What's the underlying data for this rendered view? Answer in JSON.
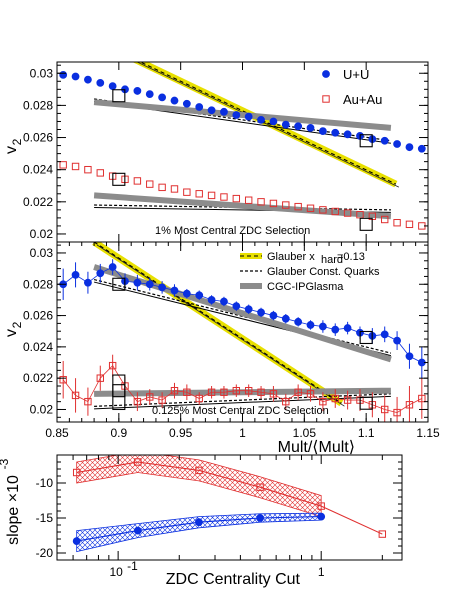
{
  "chart_data": [
    {
      "type": "scatter",
      "panel": "top",
      "ylabel": "v",
      "ylabel_sub": "2",
      "xlim": [
        0.85,
        1.15
      ],
      "ylim": [
        0.0195,
        0.0307
      ],
      "yticks": [
        "0.02",
        "0.022",
        "0.024",
        "0.026",
        "0.028",
        "0.03"
      ],
      "annotation": "1% Most Central ZDC Selection",
      "legend": [
        {
          "name": "U+U",
          "marker": "filled-circle",
          "color": "#0a2fe0"
        },
        {
          "name": "Au+Au",
          "marker": "open-square",
          "color": "#e03030"
        }
      ],
      "series": [
        {
          "name": "U+U",
          "x": [
            0.855,
            0.865,
            0.875,
            0.885,
            0.895,
            0.905,
            0.915,
            0.925,
            0.935,
            0.945,
            0.955,
            0.965,
            0.975,
            0.985,
            0.995,
            1.005,
            1.015,
            1.025,
            1.035,
            1.045,
            1.055,
            1.065,
            1.075,
            1.085,
            1.095,
            1.105,
            1.115,
            1.125,
            1.135,
            1.145
          ],
          "y": [
            0.0299,
            0.0298,
            0.0296,
            0.0294,
            0.0292,
            0.029,
            0.0289,
            0.0287,
            0.0285,
            0.0283,
            0.0281,
            0.0279,
            0.0277,
            0.0276,
            0.0274,
            0.0273,
            0.0271,
            0.027,
            0.0268,
            0.0267,
            0.0266,
            0.0264,
            0.0263,
            0.0262,
            0.0261,
            0.0259,
            0.0258,
            0.0256,
            0.0254,
            0.0253
          ]
        },
        {
          "name": "Au+Au",
          "x": [
            0.855,
            0.865,
            0.875,
            0.885,
            0.895,
            0.905,
            0.915,
            0.925,
            0.935,
            0.945,
            0.955,
            0.965,
            0.975,
            0.985,
            0.995,
            1.005,
            1.015,
            1.025,
            1.035,
            1.045,
            1.055,
            1.065,
            1.075,
            1.085,
            1.095,
            1.105,
            1.115,
            1.125,
            1.135,
            1.145
          ],
          "y": [
            0.0243,
            0.0242,
            0.024,
            0.0238,
            0.0236,
            0.0234,
            0.0233,
            0.0231,
            0.0229,
            0.0228,
            0.0226,
            0.0225,
            0.0224,
            0.0223,
            0.0222,
            0.0221,
            0.022,
            0.0219,
            0.0218,
            0.0217,
            0.0216,
            0.0215,
            0.0214,
            0.0213,
            0.0212,
            0.0211,
            0.0209,
            0.0207,
            0.0206,
            0.0205
          ]
        }
      ],
      "model_lines": [
        {
          "model": "Glauber x_hard=0.13",
          "x": [
            0.893,
            1.124
          ],
          "y": [
            0.0316,
            0.0231
          ]
        },
        {
          "model": "Glauber Const. Quarks",
          "x": [
            0.88,
            1.12
          ],
          "y": [
            0.0284,
            0.0258
          ]
        },
        {
          "model": "CGC-IPGlasma",
          "x": [
            0.88,
            1.12
          ],
          "y": [
            0.0282,
            0.0266
          ]
        },
        {
          "model": "Glauber Const. Quarks",
          "x": [
            0.88,
            1.12
          ],
          "y": [
            0.0218,
            0.0215
          ]
        },
        {
          "model": "CGC-IPGlasma",
          "x": [
            0.88,
            1.12
          ],
          "y": [
            0.0224,
            0.0211
          ]
        }
      ],
      "boxes": [
        {
          "x": 0.9,
          "y": 0.0286
        },
        {
          "x": 1.1,
          "y": 0.0258
        },
        {
          "x": 0.9,
          "y": 0.0234
        },
        {
          "x": 1.1,
          "y": 0.0206
        }
      ]
    },
    {
      "type": "scatter",
      "panel": "middle",
      "ylabel": "v",
      "ylabel_sub": "2",
      "xlabel": "Mult/⟨Mult⟩",
      "xlim": [
        0.85,
        1.15
      ],
      "ylim": [
        0.0192,
        0.0307
      ],
      "xticks": [
        "0.85",
        "0.9",
        "0.95",
        "1",
        "1.05",
        "1.1",
        "1.15"
      ],
      "yticks": [
        "0.02",
        "0.022",
        "0.024",
        "0.026",
        "0.028",
        "0.03"
      ],
      "annotation": "0.125% Most Central ZDC Selection",
      "legend": [
        {
          "name": "Glauber x",
          "sub": "hard",
          "suffix": "=0.13",
          "style": "yellow-dashed"
        },
        {
          "name": "Glauber Const. Quarks",
          "style": "black-dashed"
        },
        {
          "name": "CGC-IPGlasma",
          "style": "gray-band"
        }
      ],
      "series": [
        {
          "name": "U+U",
          "x": [
            0.855,
            0.865,
            0.875,
            0.885,
            0.895,
            0.905,
            0.915,
            0.925,
            0.935,
            0.945,
            0.955,
            0.965,
            0.975,
            0.985,
            0.995,
            1.005,
            1.015,
            1.025,
            1.035,
            1.045,
            1.055,
            1.065,
            1.075,
            1.085,
            1.095,
            1.105,
            1.115,
            1.125,
            1.135,
            1.145
          ],
          "y": [
            0.028,
            0.0286,
            0.0281,
            0.0287,
            0.0291,
            0.0282,
            0.0281,
            0.028,
            0.0278,
            0.0276,
            0.0274,
            0.0273,
            0.027,
            0.0269,
            0.0266,
            0.0264,
            0.0262,
            0.026,
            0.0258,
            0.0256,
            0.0254,
            0.0253,
            0.0251,
            0.0252,
            0.0249,
            0.0247,
            0.0248,
            0.0244,
            0.0234,
            0.023
          ],
          "err": [
            0.001,
            0.0008,
            0.0007,
            0.0006,
            0.0005,
            0.0005,
            0.0005,
            0.0004,
            0.0004,
            0.0004,
            0.0003,
            0.0003,
            0.0003,
            0.0003,
            0.0003,
            0.0003,
            0.0003,
            0.0003,
            0.0003,
            0.0003,
            0.0003,
            0.0004,
            0.0004,
            0.0004,
            0.0004,
            0.0005,
            0.0005,
            0.0006,
            0.0008,
            0.001
          ]
        },
        {
          "name": "Au+Au",
          "x": [
            0.855,
            0.865,
            0.875,
            0.885,
            0.895,
            0.905,
            0.915,
            0.925,
            0.935,
            0.945,
            0.955,
            0.965,
            0.975,
            0.985,
            0.995,
            1.005,
            1.015,
            1.025,
            1.035,
            1.045,
            1.055,
            1.065,
            1.075,
            1.085,
            1.095,
            1.105,
            1.115,
            1.125,
            1.135,
            1.145
          ],
          "y": [
            0.0219,
            0.0209,
            0.0205,
            0.022,
            0.0228,
            0.0215,
            0.0205,
            0.0208,
            0.0206,
            0.0212,
            0.0211,
            0.0207,
            0.0211,
            0.0211,
            0.0212,
            0.0212,
            0.0211,
            0.021,
            0.0205,
            0.0211,
            0.021,
            0.0205,
            0.0207,
            0.0206,
            0.0206,
            0.0203,
            0.02,
            0.0198,
            0.0203,
            0.0207
          ],
          "err": [
            0.0012,
            0.0011,
            0.0009,
            0.0008,
            0.0007,
            0.0006,
            0.0006,
            0.0005,
            0.0005,
            0.0005,
            0.0005,
            0.0004,
            0.0004,
            0.0004,
            0.0004,
            0.0004,
            0.0004,
            0.0005,
            0.0005,
            0.0005,
            0.0005,
            0.0006,
            0.0006,
            0.0006,
            0.0007,
            0.0008,
            0.0009,
            0.001,
            0.0012,
            0.0013
          ]
        }
      ],
      "model_lines": [
        {
          "model": "Glauber x_hard=0.13",
          "x": [
            0.88,
            1.08
          ],
          "y": [
            0.0307,
            0.0204
          ]
        },
        {
          "model": "Glauber Const. Quarks",
          "x": [
            0.88,
            1.12
          ],
          "y": [
            0.0283,
            0.0236
          ]
        },
        {
          "model": "CGC-IPGlasma",
          "x": [
            0.88,
            1.12
          ],
          "y": [
            0.0291,
            0.0232
          ]
        },
        {
          "model": "Glauber Const. Quarks",
          "x": [
            0.88,
            1.12
          ],
          "y": [
            0.0202,
            0.021
          ]
        },
        {
          "model": "CGC-IPGlasma",
          "x": [
            0.88,
            1.12
          ],
          "y": [
            0.021,
            0.0212
          ]
        }
      ],
      "boxes": [
        {
          "x": 0.9,
          "y": 0.028
        },
        {
          "x": 1.1,
          "y": 0.0246
        },
        {
          "x": 0.9,
          "y": 0.0212
        },
        {
          "x": 1.1,
          "y": 0.0204
        }
      ]
    },
    {
      "type": "line",
      "panel": "bottom",
      "ylabel": "slope ×10",
      "ylabel_sup": "-3",
      "xlabel": "ZDC Centrality Cut",
      "xscale": "log",
      "xlim": [
        0.05,
        2.5
      ],
      "ylim": [
        -21,
        -6
      ],
      "xticks": [
        "10",
        "1"
      ],
      "xtick_sup": "-1",
      "yticks": [
        "-20",
        "-15",
        "-10"
      ],
      "series": [
        {
          "name": "Au+Au",
          "x": [
            0.0625,
            0.125,
            0.25,
            0.5,
            1.0,
            2.0
          ],
          "y": [
            -8.5,
            -7.0,
            -8.2,
            -10.6,
            -13.3,
            -17.3
          ],
          "band": [
            1.5,
            1.5,
            1.5,
            1.5,
            1.5,
            0
          ]
        },
        {
          "name": "U+U",
          "x": [
            0.0625,
            0.125,
            0.25,
            0.5,
            1.0
          ],
          "y": [
            -18.3,
            -16.8,
            -15.6,
            -15.0,
            -14.8
          ],
          "band": [
            1.5,
            1.0,
            0.8,
            0.6,
            0.5
          ]
        }
      ]
    }
  ]
}
